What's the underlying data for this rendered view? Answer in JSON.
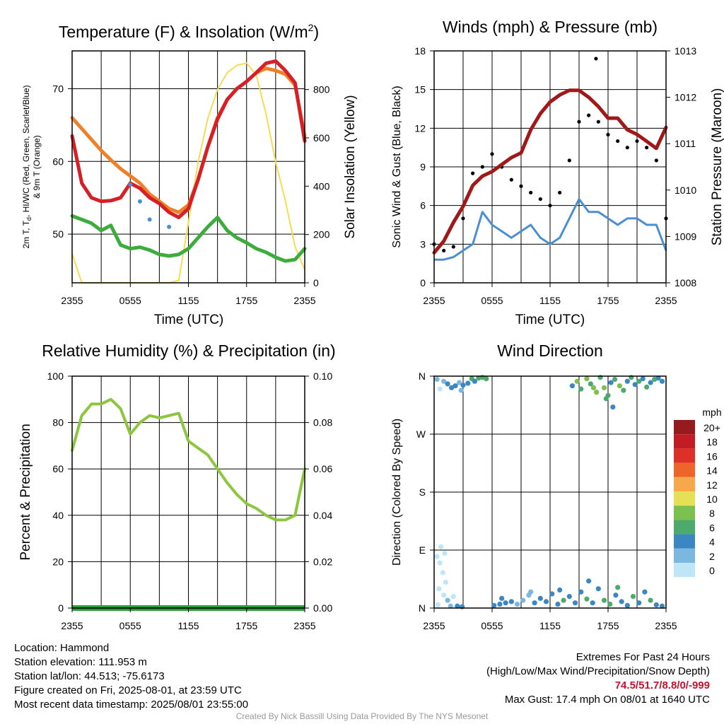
{
  "x_ticks": [
    "2355",
    "0555",
    "1155",
    "1755",
    "2355"
  ],
  "xlabel": "Time (UTC)",
  "chart_data": [
    {
      "type": "line",
      "title": "Temperature (F) & Insolation (W/m²)",
      "xlabel": "Time (UTC)",
      "ylabel": "2m T, Td, HI/WC (Red, Green, Scarlet/Blue) & 9m T (Orange)",
      "ylabel_parts": {
        "a": "2m T, T",
        "sub": "d",
        "b": ", HI/WC (Red, Green, Scarlet/Blue)",
        "line2": "& 9m T (Orange)"
      },
      "y2label": "Solar Insolation (Yellow)",
      "ylim": [
        43.3,
        75.2
      ],
      "y_ticks": [
        50,
        60,
        70
      ],
      "y2lim": [
        0,
        960
      ],
      "y2_ticks": [
        0,
        200,
        400,
        600,
        800
      ],
      "x": [
        0,
        1,
        2,
        3,
        4,
        5,
        6,
        7,
        8,
        9,
        10,
        11,
        12,
        13,
        14,
        15,
        16,
        17,
        18,
        19,
        20,
        21,
        22,
        23,
        24
      ],
      "series": [
        {
          "key": "t2m",
          "color": "#d62027",
          "values": [
            63.5,
            57.0,
            55.0,
            54.5,
            54.6,
            55.0,
            57.0,
            56.3,
            55.0,
            54.2,
            53.0,
            52.3,
            53.5,
            57.5,
            62.0,
            65.8,
            68.5,
            70.0,
            71.0,
            72.2,
            73.5,
            73.8,
            72.5,
            70.8,
            62.8
          ]
        },
        {
          "key": "t9m",
          "color": "#f07f29",
          "values": [
            66.0,
            64.5,
            63.0,
            61.5,
            60.2,
            59.0,
            58.0,
            57.0,
            55.5,
            54.5,
            53.5,
            53.0,
            54.0,
            57.5,
            62.0,
            66.0,
            68.5,
            70.0,
            71.0,
            72.2,
            72.8,
            72.5,
            72.0,
            70.5,
            63.5
          ]
        },
        {
          "key": "td",
          "color": "#3cad3c",
          "values": [
            52.5,
            52.0,
            51.5,
            50.5,
            51.2,
            48.5,
            48.0,
            48.2,
            47.8,
            47.2,
            47.0,
            47.2,
            48.0,
            49.5,
            51.0,
            52.3,
            50.5,
            49.5,
            48.8,
            48.0,
            47.5,
            46.8,
            46.3,
            46.5,
            48.0
          ]
        },
        {
          "key": "hiwc",
          "color": "#4a90d0",
          "values": [
            null,
            null,
            null,
            null,
            null,
            null,
            56.8,
            54.5,
            52.0,
            null,
            51.0,
            null,
            null,
            null,
            null,
            null,
            null,
            null,
            null,
            null,
            null,
            null,
            null,
            null,
            null
          ]
        },
        {
          "key": "solar",
          "axis": "y2",
          "color": "#f5dc50",
          "values": [
            120,
            0,
            0,
            0,
            0,
            0,
            0,
            0,
            0,
            0,
            0,
            10,
            250,
            500,
            680,
            800,
            870,
            900,
            910,
            860,
            700,
            500,
            340,
            150,
            55
          ]
        }
      ]
    },
    {
      "type": "line",
      "title": "Winds (mph) & Pressure (mb)",
      "xlabel": "Time (UTC)",
      "ylabel": "Sonic Wind & Gust (Blue, Black)",
      "y2label": "Station Pressure (Maroon)",
      "ylim": [
        0,
        18
      ],
      "y_ticks": [
        0,
        3,
        6,
        9,
        12,
        15,
        18
      ],
      "y2lim": [
        1008,
        1013
      ],
      "y2_ticks": [
        1008,
        1009,
        1010,
        1011,
        1012,
        1013
      ],
      "x": [
        0,
        1,
        2,
        3,
        4,
        5,
        6,
        7,
        8,
        9,
        10,
        11,
        12,
        13,
        14,
        15,
        16,
        17,
        18,
        19,
        20,
        21,
        22,
        23,
        24
      ],
      "series": [
        {
          "key": "wind",
          "color": "#4a90d0",
          "values": [
            1.8,
            1.8,
            2.0,
            2.5,
            3.0,
            5.5,
            4.5,
            4.0,
            3.5,
            4.0,
            4.5,
            3.5,
            3.0,
            3.5,
            5.0,
            6.5,
            5.5,
            5.5,
            5.0,
            4.5,
            5.0,
            5.0,
            4.5,
            4.5,
            2.5
          ]
        },
        {
          "key": "gust",
          "color": "#000000",
          "values": [
            3.0,
            2.5,
            2.8,
            5.0,
            8.5,
            9.0,
            10.0,
            9.0,
            8.0,
            7.5,
            7.0,
            6.5,
            6.0,
            7.0,
            9.5,
            12.5,
            13.0,
            12.5,
            11.5,
            11.0,
            10.5,
            11.0,
            10.5,
            9.5,
            5.0
          ]
        },
        {
          "key": "pressure",
          "axis": "y2",
          "color": "#a01818",
          "values": [
            1008.65,
            1008.9,
            1009.3,
            1009.65,
            1010.1,
            1010.3,
            1010.4,
            1010.55,
            1010.7,
            1010.8,
            1011.3,
            1011.65,
            1011.9,
            1012.05,
            1012.15,
            1012.15,
            1012.0,
            1011.8,
            1011.55,
            1011.55,
            1011.3,
            1011.2,
            1011.05,
            1010.9,
            1011.35
          ]
        }
      ],
      "max_gust_point": {
        "x": 16.75,
        "y": 17.4
      }
    },
    {
      "type": "line",
      "title": "Relative Humidity (%) & Precipitation (in)",
      "ylabel": "Percent & Precipitation",
      "ylim": [
        0,
        100
      ],
      "y_ticks": [
        0,
        20,
        40,
        60,
        80,
        100
      ],
      "y2lim": [
        0,
        0.1
      ],
      "y2_ticks": [
        "0.00",
        "0.02",
        "0.04",
        "0.06",
        "0.08",
        "0.10"
      ],
      "x": [
        0,
        1,
        2,
        3,
        4,
        5,
        6,
        7,
        8,
        9,
        10,
        11,
        12,
        13,
        14,
        15,
        16,
        17,
        18,
        19,
        20,
        21,
        22,
        23,
        24
      ],
      "series": [
        {
          "key": "rh",
          "color": "#8cc63f",
          "values": [
            68,
            83,
            88,
            88,
            90,
            86,
            75,
            80,
            83,
            82,
            83,
            84,
            72,
            69,
            66,
            60,
            54,
            49,
            45,
            43,
            40,
            38,
            38,
            40,
            60
          ]
        },
        {
          "key": "precip",
          "axis": "y2",
          "color": "#2e9e3a",
          "values": [
            0,
            0,
            0,
            0,
            0,
            0,
            0,
            0,
            0,
            0,
            0,
            0,
            0,
            0,
            0,
            0,
            0,
            0,
            0,
            0,
            0,
            0,
            0,
            0,
            0
          ]
        }
      ]
    },
    {
      "type": "scatter",
      "title": "Wind Direction",
      "ylabel": "Direction (Colored By Speed)",
      "y_ticks": [
        "N",
        "E",
        "S",
        "W",
        "N"
      ],
      "ylim": [
        0,
        360
      ],
      "legend_title": "mph",
      "legend": [
        {
          "label": "0",
          "color": "#bfe6f7"
        },
        {
          "label": "2",
          "color": "#7ab8e0"
        },
        {
          "label": "4",
          "color": "#3b87c3"
        },
        {
          "label": "6",
          "color": "#4caa6c"
        },
        {
          "label": "8",
          "color": "#7cc04f"
        },
        {
          "label": "10",
          "color": "#e6e056"
        },
        {
          "label": "12",
          "color": "#f6a84a"
        },
        {
          "label": "14",
          "color": "#ef6429"
        },
        {
          "label": "16",
          "color": "#dd3027"
        },
        {
          "label": "18",
          "color": "#c21d25"
        },
        {
          "label": "20+",
          "color": "#961b1e"
        }
      ],
      "points": [
        {
          "x": 0.3,
          "y": 355,
          "s": 1
        },
        {
          "x": 0.6,
          "y": 340,
          "s": 0
        },
        {
          "x": 1.0,
          "y": 352,
          "s": 1
        },
        {
          "x": 1.4,
          "y": 348,
          "s": 2
        },
        {
          "x": 1.8,
          "y": 342,
          "s": 2
        },
        {
          "x": 2.2,
          "y": 345,
          "s": 2
        },
        {
          "x": 2.6,
          "y": 350,
          "s": 1
        },
        {
          "x": 3.0,
          "y": 346,
          "s": 2
        },
        {
          "x": 3.5,
          "y": 349,
          "s": 2
        },
        {
          "x": 3.9,
          "y": 356,
          "s": 3
        },
        {
          "x": 4.2,
          "y": 352,
          "s": 2
        },
        {
          "x": 4.6,
          "y": 357,
          "s": 3
        },
        {
          "x": 5.0,
          "y": 358,
          "s": 3
        },
        {
          "x": 5.4,
          "y": 356,
          "s": 3
        },
        {
          "x": 2.8,
          "y": 338,
          "s": 1
        },
        {
          "x": 0.3,
          "y": 80,
          "s": 0
        },
        {
          "x": 0.6,
          "y": 70,
          "s": 0
        },
        {
          "x": 0.9,
          "y": 55,
          "s": 0
        },
        {
          "x": 1.2,
          "y": 40,
          "s": 0
        },
        {
          "x": 0.5,
          "y": 30,
          "s": 0
        },
        {
          "x": 1.0,
          "y": 20,
          "s": 0
        },
        {
          "x": 1.4,
          "y": 12,
          "s": 1
        },
        {
          "x": 0.7,
          "y": 95,
          "s": 0
        },
        {
          "x": 1.1,
          "y": 85,
          "s": 0
        },
        {
          "x": 0.4,
          "y": 5,
          "s": 0
        },
        {
          "x": 1.7,
          "y": 3,
          "s": 1
        },
        {
          "x": 2.4,
          "y": 3,
          "s": 2
        },
        {
          "x": 2.9,
          "y": 2,
          "s": 2
        },
        {
          "x": 2.0,
          "y": 18,
          "s": 0
        },
        {
          "x": 6.2,
          "y": 4,
          "s": 2
        },
        {
          "x": 6.8,
          "y": 6,
          "s": 2
        },
        {
          "x": 7.4,
          "y": 8,
          "s": 2
        },
        {
          "x": 8.0,
          "y": 10,
          "s": 2
        },
        {
          "x": 8.6,
          "y": 6,
          "s": 1
        },
        {
          "x": 9.2,
          "y": 12,
          "s": 1
        },
        {
          "x": 9.8,
          "y": 20,
          "s": 1
        },
        {
          "x": 10.4,
          "y": 8,
          "s": 2
        },
        {
          "x": 11.0,
          "y": 15,
          "s": 2
        },
        {
          "x": 11.6,
          "y": 10,
          "s": 2
        },
        {
          "x": 12.2,
          "y": 22,
          "s": 2
        },
        {
          "x": 12.8,
          "y": 6,
          "s": 2
        },
        {
          "x": 13.4,
          "y": 12,
          "s": 3
        },
        {
          "x": 14.0,
          "y": 18,
          "s": 2
        },
        {
          "x": 14.6,
          "y": 8,
          "s": 2
        },
        {
          "x": 15.2,
          "y": 25,
          "s": 2
        },
        {
          "x": 15.8,
          "y": 14,
          "s": 3
        },
        {
          "x": 16.4,
          "y": 8,
          "s": 2
        },
        {
          "x": 17.0,
          "y": 30,
          "s": 2
        },
        {
          "x": 17.6,
          "y": 12,
          "s": 3
        },
        {
          "x": 18.2,
          "y": 6,
          "s": 3
        },
        {
          "x": 18.8,
          "y": 20,
          "s": 2
        },
        {
          "x": 19.4,
          "y": 10,
          "s": 2
        },
        {
          "x": 20.0,
          "y": 4,
          "s": 2
        },
        {
          "x": 20.6,
          "y": 18,
          "s": 3
        },
        {
          "x": 21.2,
          "y": 8,
          "s": 2
        },
        {
          "x": 21.8,
          "y": 25,
          "s": 2
        },
        {
          "x": 22.4,
          "y": 12,
          "s": 3
        },
        {
          "x": 23.0,
          "y": 5,
          "s": 2
        },
        {
          "x": 23.6,
          "y": 3,
          "s": 2
        },
        {
          "x": 16.0,
          "y": 42,
          "s": 2
        },
        {
          "x": 13.0,
          "y": 28,
          "s": 2
        },
        {
          "x": 10.0,
          "y": 25,
          "s": 1
        },
        {
          "x": 7.0,
          "y": 15,
          "s": 2
        },
        {
          "x": 19.0,
          "y": 32,
          "s": 3
        },
        {
          "x": 14.3,
          "y": 345,
          "s": 2
        },
        {
          "x": 14.8,
          "y": 352,
          "s": 4
        },
        {
          "x": 15.2,
          "y": 340,
          "s": 3
        },
        {
          "x": 15.8,
          "y": 356,
          "s": 4
        },
        {
          "x": 16.2,
          "y": 348,
          "s": 3
        },
        {
          "x": 16.8,
          "y": 335,
          "s": 4
        },
        {
          "x": 17.2,
          "y": 358,
          "s": 3
        },
        {
          "x": 17.6,
          "y": 342,
          "s": 4
        },
        {
          "x": 18.0,
          "y": 330,
          "s": 3
        },
        {
          "x": 18.3,
          "y": 350,
          "s": 2
        },
        {
          "x": 18.7,
          "y": 355,
          "s": 3
        },
        {
          "x": 19.2,
          "y": 345,
          "s": 4
        },
        {
          "x": 19.6,
          "y": 338,
          "s": 3
        },
        {
          "x": 20.0,
          "y": 352,
          "s": 2
        },
        {
          "x": 20.4,
          "y": 358,
          "s": 3
        },
        {
          "x": 20.8,
          "y": 347,
          "s": 2
        },
        {
          "x": 21.2,
          "y": 352,
          "s": 3
        },
        {
          "x": 21.6,
          "y": 356,
          "s": 2
        },
        {
          "x": 22.0,
          "y": 343,
          "s": 3
        },
        {
          "x": 22.4,
          "y": 350,
          "s": 2
        },
        {
          "x": 22.8,
          "y": 355,
          "s": 3
        },
        {
          "x": 23.2,
          "y": 357,
          "s": 2
        },
        {
          "x": 23.6,
          "y": 352,
          "s": 2
        },
        {
          "x": 18.5,
          "y": 312,
          "s": 2
        },
        {
          "x": 17.8,
          "y": 325,
          "s": 3
        },
        {
          "x": 16.5,
          "y": 342,
          "s": 4
        }
      ]
    }
  ],
  "info_left": [
    "Location: Hammond",
    "Station elevation: 111.953 m",
    "Station lat/lon: 44.513; -75.6173",
    "Figure created on Fri, 2025-08-01, at 23:59 UTC",
    "Most recent data timestamp: 2025/08/01 23:55:00"
  ],
  "extremes": {
    "title": "Extremes For Past 24 Hours",
    "subtitle": "(High/Low/Max Wind/Precipitation/Snow Depth)",
    "values": "74.5/51.7/8.8/0/-999",
    "max_gust": "Max Gust: 17.4 mph On 08/01 at 1640 UTC"
  },
  "credit": "Created By Nick Bassill Using Data Provided By The NYS Mesonet"
}
